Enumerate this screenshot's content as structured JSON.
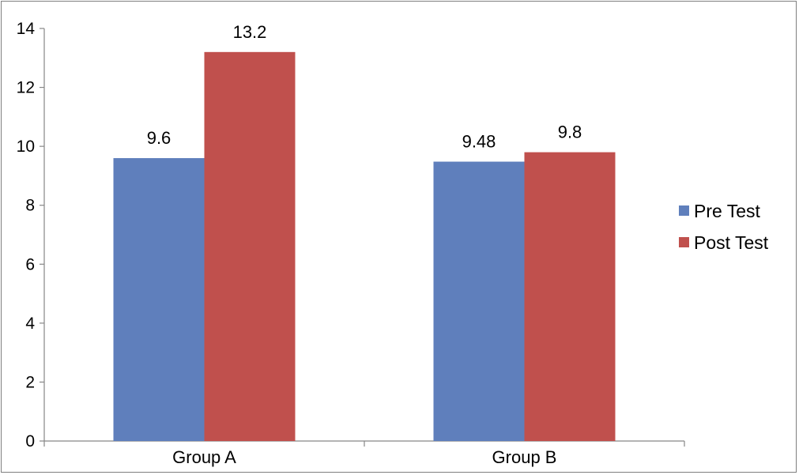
{
  "chart_data": {
    "type": "bar",
    "categories": [
      "Group A",
      "Group B"
    ],
    "series": [
      {
        "name": "Pre Test",
        "values": [
          9.6,
          9.48
        ],
        "color": "#5f7fbc",
        "labels": [
          "9.6",
          "9.48"
        ]
      },
      {
        "name": "Post Test",
        "values": [
          13.2,
          9.8
        ],
        "color": "#c0504d",
        "labels": [
          "13.2",
          "9.8"
        ]
      }
    ],
    "yticks": [
      "0",
      "2",
      "4",
      "6",
      "8",
      "10",
      "12",
      "14"
    ],
    "ylim": [
      0,
      14
    ],
    "grid": false,
    "legend_position": "right"
  }
}
